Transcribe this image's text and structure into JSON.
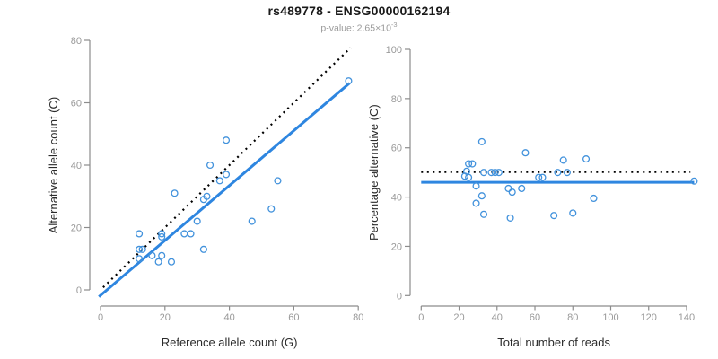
{
  "header": {
    "title": "rs489778 - ENSG00000162194",
    "pvalue_label": "p-value: 2.65×10",
    "pvalue_exponent": "-3"
  },
  "colors": {
    "title": "#1a1a1a",
    "subtitle": "#9a9a9a",
    "axis": "#8c8c8c",
    "tick_label": "#999999",
    "axis_title": "#2b2b2b",
    "line_blue": "#2e86e0",
    "point_blue": "#4292dc",
    "identity_black": "#000000",
    "background": "#ffffff"
  },
  "chart_data": [
    {
      "type": "scatter",
      "title": "",
      "xlabel": "Reference allele count (G)",
      "ylabel": "Alternative allele count (C)",
      "xlim": [
        0,
        80
      ],
      "ylim": [
        0,
        80
      ],
      "xticks": [
        0,
        20,
        40,
        60,
        80
      ],
      "yticks": [
        0,
        20,
        40,
        60,
        80
      ],
      "grid": false,
      "legend": "none",
      "points": [
        [
          77,
          67
        ],
        [
          39,
          48
        ],
        [
          34,
          40
        ],
        [
          39,
          37
        ],
        [
          37,
          35
        ],
        [
          55,
          35
        ],
        [
          23,
          31
        ],
        [
          33,
          30
        ],
        [
          32,
          29
        ],
        [
          53,
          26
        ],
        [
          30,
          22
        ],
        [
          47,
          22
        ],
        [
          32,
          13
        ],
        [
          12,
          18
        ],
        [
          26,
          18
        ],
        [
          28,
          18
        ],
        [
          19,
          18
        ],
        [
          19,
          17
        ],
        [
          12,
          13
        ],
        [
          13,
          13
        ],
        [
          16,
          11
        ],
        [
          19,
          11
        ],
        [
          12,
          10
        ],
        [
          18,
          9
        ],
        [
          22,
          9
        ]
      ],
      "lines": [
        {
          "name": "identity-line",
          "style": "dotted",
          "color": "#000000",
          "from": [
            0.8,
            0.8
          ],
          "to": [
            77.6,
            77.6
          ]
        },
        {
          "name": "fit-line",
          "style": "solid",
          "color": "#2e86e0",
          "from": [
            -0.5,
            -2.2
          ],
          "to": [
            77.3,
            66.3
          ]
        }
      ]
    },
    {
      "type": "scatter",
      "title": "",
      "xlabel": "Total number of reads",
      "ylabel": "Percentage alternative (C)",
      "xlim": [
        0,
        140
      ],
      "ylim": [
        0,
        100
      ],
      "xticks": [
        0,
        20,
        40,
        60,
        80,
        100,
        120,
        140
      ],
      "yticks": [
        0,
        20,
        40,
        60,
        80,
        100
      ],
      "grid": false,
      "legend": "none",
      "points": [
        [
          32,
          62.5
        ],
        [
          55,
          58
        ],
        [
          75,
          55
        ],
        [
          87,
          55.5
        ],
        [
          25,
          53.5
        ],
        [
          27,
          53.5
        ],
        [
          24,
          50.5
        ],
        [
          33,
          50
        ],
        [
          37,
          50
        ],
        [
          39,
          50
        ],
        [
          41,
          50
        ],
        [
          72,
          50
        ],
        [
          77,
          50
        ],
        [
          23,
          48.5
        ],
        [
          25,
          48
        ],
        [
          62,
          48
        ],
        [
          64,
          48
        ],
        [
          144,
          46.5
        ],
        [
          29,
          44.5
        ],
        [
          46,
          43.5
        ],
        [
          53,
          43.5
        ],
        [
          48,
          42
        ],
        [
          32,
          40.5
        ],
        [
          91,
          39.5
        ],
        [
          29,
          37.5
        ],
        [
          33,
          33
        ],
        [
          47,
          31.5
        ],
        [
          70,
          32.5
        ],
        [
          80,
          33.5
        ]
      ],
      "lines": [
        {
          "name": "expected-50pct-line",
          "style": "dotted",
          "color": "#000000",
          "from": [
            0,
            50.2
          ],
          "to": [
            142,
            50.2
          ]
        },
        {
          "name": "mean-line",
          "style": "solid",
          "color": "#2e86e0",
          "from": [
            0,
            46
          ],
          "to": [
            144,
            46
          ]
        }
      ]
    }
  ]
}
